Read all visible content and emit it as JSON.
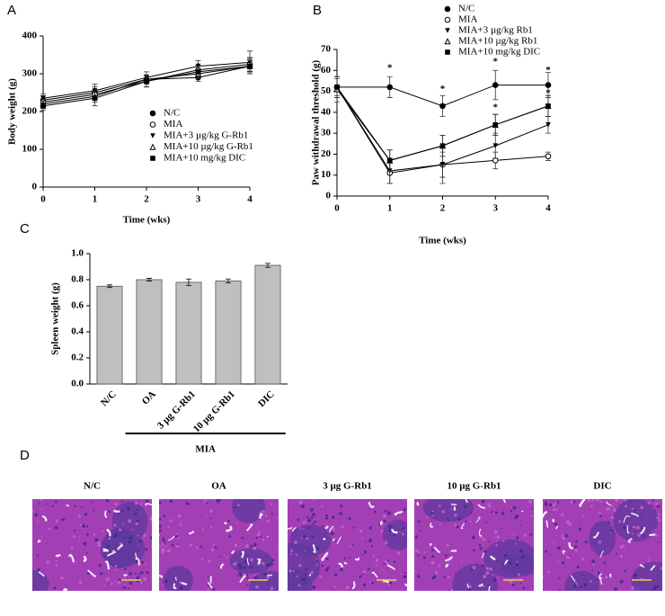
{
  "chart_data": [
    {
      "panel": "A",
      "type": "line",
      "xlabel": "Time (wks)",
      "ylabel": "Body weight (g)",
      "x": [
        0,
        1,
        2,
        3,
        4
      ],
      "xlim": [
        0,
        4
      ],
      "xticks": [
        0,
        1,
        2,
        3,
        4
      ],
      "ylim": [
        0,
        400
      ],
      "yticks": [
        0,
        100,
        200,
        300,
        400
      ],
      "series": [
        {
          "name": "N/C",
          "color": "#000000",
          "marker": "circle",
          "values": [
            230,
            250,
            285,
            290,
            320
          ],
          "errors": [
            12,
            15,
            12,
            10,
            15
          ]
        },
        {
          "name": "MIA",
          "color": "#000000",
          "marker": "circle-open",
          "values": [
            225,
            245,
            280,
            310,
            325
          ],
          "errors": [
            10,
            12,
            15,
            12,
            18
          ]
        },
        {
          "name": "MIA+3 µg/kg G-Rb1",
          "color": "#000000",
          "marker": "triangle-down",
          "values": [
            235,
            255,
            290,
            320,
            330
          ],
          "errors": [
            12,
            18,
            15,
            15,
            30
          ]
        },
        {
          "name": "MIA+10 µg/kg G-Rb1",
          "color": "#000000",
          "marker": "triangle-open",
          "values": [
            220,
            240,
            285,
            300,
            320
          ],
          "errors": [
            12,
            15,
            12,
            12,
            20
          ]
        },
        {
          "name": "MIA+10 mg/kg DIC",
          "color": "#000000",
          "marker": "square",
          "values": [
            215,
            235,
            280,
            305,
            320
          ],
          "errors": [
            12,
            20,
            15,
            15,
            15
          ]
        }
      ]
    },
    {
      "panel": "B",
      "type": "line",
      "xlabel": "Time (wks)",
      "ylabel": "Paw withdrawal threshold  (g)",
      "x": [
        0,
        1,
        2,
        3,
        4
      ],
      "xlim": [
        0,
        4
      ],
      "xticks": [
        0,
        1,
        2,
        3,
        4
      ],
      "ylim": [
        0,
        70
      ],
      "yticks": [
        0,
        10,
        20,
        30,
        40,
        50,
        60,
        70
      ],
      "series": [
        {
          "name": "N/C",
          "color": "#000000",
          "marker": "circle",
          "values": [
            52,
            52,
            43,
            53,
            53
          ],
          "errors": [
            4,
            5,
            5,
            7,
            6
          ]
        },
        {
          "name": "MIA",
          "color": "#000000",
          "marker": "circle-open",
          "values": [
            52,
            11,
            15,
            17,
            19
          ],
          "errors": [
            5,
            5,
            6,
            4,
            2
          ]
        },
        {
          "name": "MIA+3  µg/kg Rb1",
          "color": "#000000",
          "marker": "triangle-down",
          "values": [
            52,
            12,
            15,
            24,
            34
          ],
          "errors": [
            5,
            6,
            9,
            6,
            4
          ]
        },
        {
          "name": "MIA+10 µg/kg Rb1",
          "color": "#000000",
          "marker": "triangle-open",
          "values": [
            51,
            17,
            24,
            34,
            43
          ],
          "errors": [
            6,
            5,
            5,
            5,
            5
          ]
        },
        {
          "name": "MIA+10 mg/kg DIC",
          "color": "#000000",
          "marker": "square",
          "values": [
            52,
            17,
            24,
            34,
            43
          ],
          "errors": [
            5,
            5,
            5,
            5,
            5
          ]
        }
      ],
      "annotations": [
        {
          "text": "*",
          "x": 1,
          "y": 61
        },
        {
          "text": "*",
          "x": 2,
          "y": 51
        },
        {
          "text": "*",
          "x": 3,
          "y": 64
        },
        {
          "text": "*",
          "x": 4,
          "y": 60
        },
        {
          "text": "*",
          "x": 3,
          "y": 42
        },
        {
          "text": "*",
          "x": 4,
          "y": 49
        }
      ]
    },
    {
      "panel": "C",
      "type": "bar",
      "ylabel": "Spleen weight (g)",
      "group_label": "MIA",
      "categories": [
        "N/C",
        "OA",
        "3 µg G-Rb1",
        "10 µg G-Rb1",
        "DIC"
      ],
      "values": [
        0.75,
        0.8,
        0.78,
        0.79,
        0.91
      ],
      "errors": [
        0.01,
        0.01,
        0.025,
        0.015,
        0.015
      ],
      "color": "#bfbfbf",
      "ylim": [
        0,
        1
      ],
      "yticks": [
        {
          "value": 0,
          "label": "0.0"
        },
        {
          "value": 0.2,
          "label": "0.2"
        },
        {
          "value": 0.4,
          "label": "0.4"
        },
        {
          "value": 0.6,
          "label": "0.6"
        },
        {
          "value": 0.8,
          "label": "0.8"
        },
        {
          "value": 1,
          "label": "1.0"
        }
      ]
    }
  ],
  "histology": {
    "panel": "D",
    "labels": [
      "N/C",
      "OA",
      "3 µg G-Rb1",
      "10 µg G-Rb1",
      "DIC"
    ]
  }
}
